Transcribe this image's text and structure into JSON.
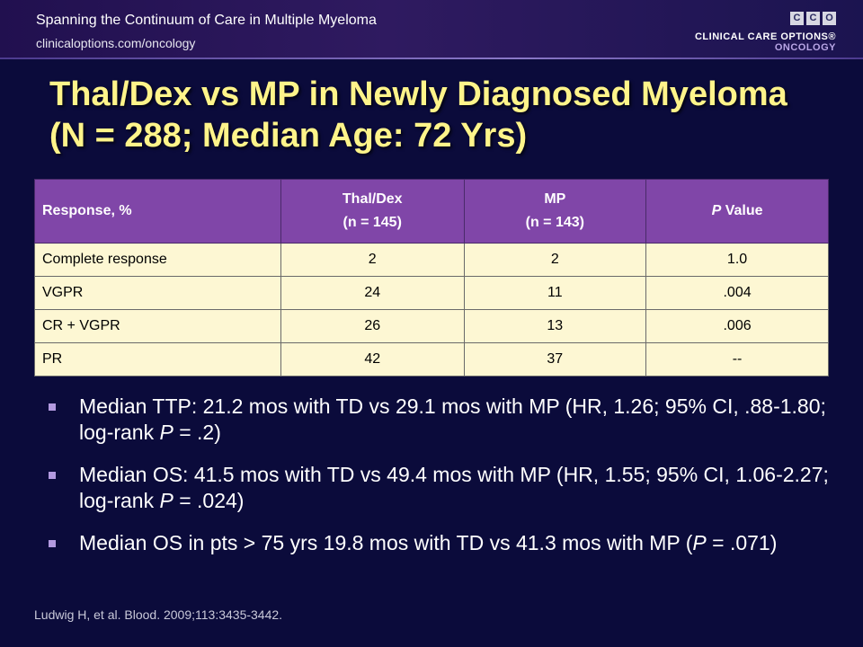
{
  "header": {
    "series_title": "Spanning the Continuum of Care in Multiple Myeloma",
    "url": "clinicaloptions.com/oncology",
    "logo_letters": [
      "C",
      "C",
      "O"
    ],
    "logo_name": "CLINICAL CARE OPTIONS®",
    "logo_sub": "ONCOLOGY"
  },
  "title": "Thal/Dex vs MP in Newly Diagnosed Myeloma (N = 288; Median Age: 72 Yrs)",
  "table": {
    "headers": [
      {
        "line1": "Response, %",
        "line2": ""
      },
      {
        "line1": "Thal/Dex",
        "line2": "(n = 145)"
      },
      {
        "line1": "MP",
        "line2": "(n = 143)"
      },
      {
        "line1": "P",
        "line1_rest": " Value",
        "line2": ""
      }
    ],
    "rows": [
      [
        "Complete response",
        "2",
        "2",
        "1.0"
      ],
      [
        "VGPR",
        "24",
        "11",
        ".004"
      ],
      [
        "CR + VGPR",
        "26",
        "13",
        ".006"
      ],
      [
        "PR",
        "42",
        "37",
        "--"
      ]
    ]
  },
  "bullets": [
    {
      "a": "Median TTP: 21.2 mos with TD vs 29.1 mos with MP (HR, 1.26; 95% CI, .88-1.80; log-rank ",
      "italic": "P",
      "b": " = .2)"
    },
    {
      "a": "Median OS: 41.5 mos with TD vs 49.4 mos with MP (HR, 1.55; 95% CI, 1.06-2.27; log-rank ",
      "italic": "P",
      "b": " = .024)"
    },
    {
      "a": "Median OS in pts > 75 yrs  19.8 mos with TD vs 41.3 mos with MP (",
      "italic": "P",
      "b": " = .071)"
    }
  ],
  "citation": "Ludwig H, et al. Blood. 2009;113:3435-3442.",
  "colors": {
    "background": "#0b0b3b",
    "title": "#fff48a",
    "table_header": "#8046a8",
    "table_cell": "#fdf7d3"
  }
}
